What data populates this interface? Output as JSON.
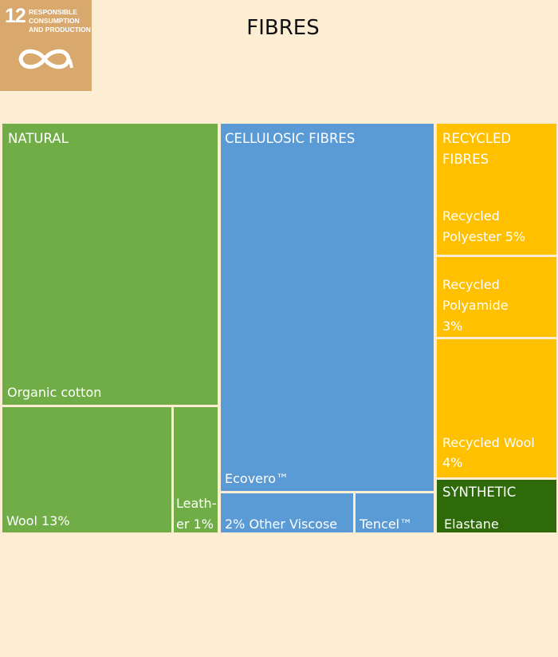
{
  "title": "FIBRES",
  "badge": {
    "number": "12",
    "text": "RESPONSIBLE CONSUMPTION AND PRODUCTION",
    "icon": "infinity-icon",
    "color": "#D9A86C"
  },
  "colors": {
    "background": "#FDEDD3",
    "natural": "#70AD47",
    "cellulosic": "#5B9BD5",
    "recycled": "#FFC000",
    "synthetic": "#2E6A0A"
  },
  "chart_data": {
    "type": "treemap",
    "title": "FIBRES",
    "groups": [
      {
        "name": "NATURAL",
        "color": "#70AD47",
        "items": [
          {
            "label": "Organic cotton",
            "value": null
          },
          {
            "label": "Wool 13%",
            "value": 13
          },
          {
            "label": "Leath- er 1%",
            "value": 1
          }
        ]
      },
      {
        "name": "CELLULOSIC FIBRES",
        "color": "#5B9BD5",
        "items": [
          {
            "label": "Ecovero™",
            "value": null
          },
          {
            "label": "2% Other Viscose",
            "value": 2
          },
          {
            "label": "Tencel™",
            "value": null
          }
        ]
      },
      {
        "name": "RECYCLED FIBRES",
        "color": "#FFC000",
        "items": [
          {
            "label": "Recycled Polyester 5%",
            "value": 5
          },
          {
            "label": "Recycled Polyamide 3%",
            "value": 3
          },
          {
            "label": "Recycled Wool 4%",
            "value": 4
          }
        ]
      },
      {
        "name": "SYNTHETIC",
        "color": "#2E6A0A",
        "items": [
          {
            "label": "Elastane",
            "value": null
          }
        ]
      }
    ]
  }
}
